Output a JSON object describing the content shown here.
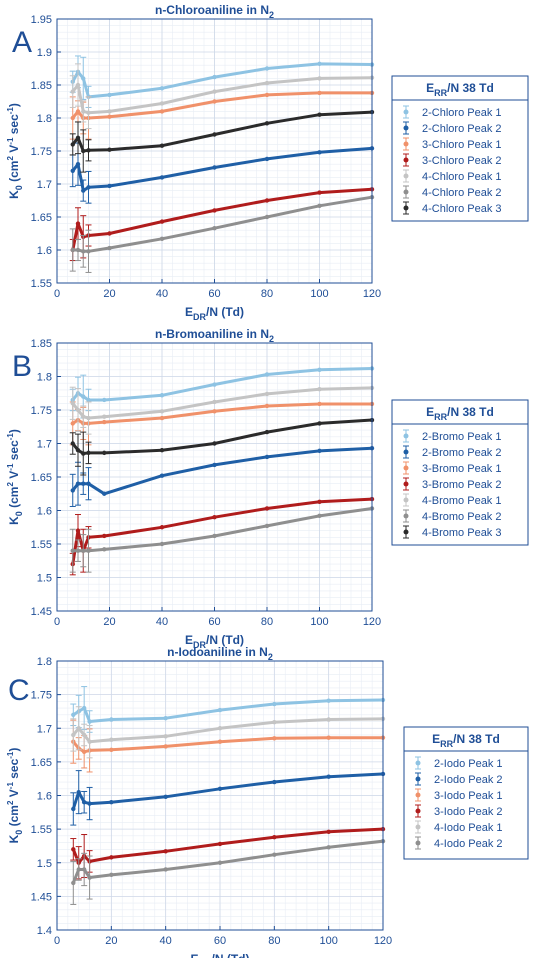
{
  "chart_data": [
    {
      "panel_label": "A",
      "type": "line",
      "title": "n-Chloroaniline in N",
      "title_sub": "2",
      "xlabel": "E",
      "xlabel_sub": "DR",
      "xlabel_tail": "/N (Td)",
      "ylabel": "K",
      "ylabel_sub": "0",
      "ylabel_tail": " (cm",
      "ylabel_units": "2",
      "ylabel_mid": " V",
      "ylabel_exp1": "-1",
      "ylabel_end": " sec",
      "ylabel_exp2": "-1",
      "ylabel_close": ")",
      "xlim": [
        0,
        120
      ],
      "ylim": [
        1.55,
        1.95
      ],
      "xticks": [
        "0",
        "20",
        "40",
        "60",
        "80",
        "100",
        "120"
      ],
      "yticks": [
        "1.55",
        "1.6",
        "1.65",
        "1.7",
        "1.75",
        "1.8",
        "1.85",
        "1.9",
        "1.95"
      ],
      "grid": true,
      "legend_title": "E",
      "legend_title_sub": "RR",
      "legend_title_tail": "/N 38 Td",
      "legend_position": "right",
      "series": [
        {
          "name": "2-Chloro Peak 1",
          "color": "#8ec3e3",
          "x": [
            6,
            8,
            10,
            12,
            20,
            40,
            60,
            80,
            100,
            120
          ],
          "y": [
            1.855,
            1.87,
            1.86,
            1.832,
            1.835,
            1.845,
            1.862,
            1.875,
            1.882,
            1.881
          ]
        },
        {
          "name": "2-Chloro Peak 2",
          "color": "#1f5fa6",
          "x": [
            6,
            8,
            10,
            12,
            20,
            40,
            60,
            80,
            100,
            120
          ],
          "y": [
            1.72,
            1.73,
            1.69,
            1.695,
            1.697,
            1.71,
            1.725,
            1.738,
            1.748,
            1.754
          ]
        },
        {
          "name": "3-Chloro Peak 1",
          "color": "#f0916a",
          "x": [
            6,
            8,
            10,
            12,
            20,
            40,
            60,
            80,
            100,
            120
          ],
          "y": [
            1.8,
            1.81,
            1.8,
            1.8,
            1.802,
            1.81,
            1.825,
            1.835,
            1.838,
            1.838
          ]
        },
        {
          "name": "3-Chloro Peak 2",
          "color": "#b01c1c",
          "x": [
            6,
            8,
            10,
            12,
            20,
            40,
            60,
            80,
            100,
            120
          ],
          "y": [
            1.6,
            1.64,
            1.62,
            1.622,
            1.625,
            1.643,
            1.66,
            1.675,
            1.687,
            1.692
          ]
        },
        {
          "name": "4-Chloro Peak 1",
          "color": "#c4c4c4",
          "x": [
            6,
            8,
            10,
            12,
            20,
            40,
            60,
            80,
            100,
            120
          ],
          "y": [
            1.84,
            1.85,
            1.81,
            1.808,
            1.81,
            1.822,
            1.84,
            1.853,
            1.86,
            1.861
          ]
        },
        {
          "name": "4-Chloro Peak 2",
          "color": "#8f8f8f",
          "x": [
            6,
            8,
            10,
            12,
            20,
            40,
            60,
            80,
            100,
            120
          ],
          "y": [
            1.6,
            1.6,
            1.598,
            1.598,
            1.603,
            1.617,
            1.633,
            1.65,
            1.667,
            1.68
          ]
        },
        {
          "name": "4-Chloro Peak 3",
          "color": "#2b2b2b",
          "x": [
            6,
            8,
            10,
            12,
            20,
            40,
            60,
            80,
            100,
            120
          ],
          "y": [
            1.76,
            1.77,
            1.75,
            1.751,
            1.752,
            1.758,
            1.775,
            1.792,
            1.805,
            1.809
          ]
        }
      ]
    },
    {
      "panel_label": "B",
      "type": "line",
      "title": "n-Bromoaniline in N",
      "title_sub": "2",
      "xlabel": "E",
      "xlabel_sub": "DR",
      "xlabel_tail": "/N (Td)",
      "ylabel": "K",
      "ylabel_sub": "0",
      "ylabel_tail": " (cm",
      "ylabel_units": "2",
      "ylabel_mid": " V",
      "ylabel_exp1": "-1",
      "ylabel_end": " sec",
      "ylabel_exp2": "-1",
      "ylabel_close": ")",
      "xlim": [
        0,
        120
      ],
      "ylim": [
        1.45,
        1.85
      ],
      "xticks": [
        "0",
        "20",
        "40",
        "60",
        "80",
        "100",
        "120"
      ],
      "yticks": [
        "1.45",
        "1.5",
        "1.55",
        "1.6",
        "1.65",
        "1.7",
        "1.75",
        "1.8",
        "1.85"
      ],
      "grid": true,
      "legend_title": "E",
      "legend_title_sub": "RR",
      "legend_title_tail": "/N 38 Td",
      "legend_position": "right",
      "series": [
        {
          "name": "2-Bromo Peak 1",
          "color": "#8ec3e3",
          "x": [
            6,
            8,
            10,
            12,
            18,
            40,
            60,
            80,
            100,
            120
          ],
          "y": [
            1.765,
            1.775,
            1.77,
            1.765,
            1.765,
            1.772,
            1.788,
            1.803,
            1.81,
            1.812
          ]
        },
        {
          "name": "2-Bromo Peak 2",
          "color": "#1f5fa6",
          "x": [
            6,
            8,
            10,
            12,
            18,
            40,
            60,
            80,
            100,
            120
          ],
          "y": [
            1.63,
            1.64,
            1.64,
            1.64,
            1.625,
            1.652,
            1.668,
            1.68,
            1.689,
            1.693
          ]
        },
        {
          "name": "3-Bromo Peak 1",
          "color": "#f0916a",
          "x": [
            6,
            8,
            10,
            12,
            18,
            40,
            60,
            80,
            100,
            120
          ],
          "y": [
            1.73,
            1.735,
            1.73,
            1.73,
            1.732,
            1.738,
            1.748,
            1.756,
            1.759,
            1.759
          ]
        },
        {
          "name": "3-Bromo Peak 2",
          "color": "#b01c1c",
          "x": [
            6,
            8,
            10,
            12,
            18,
            40,
            60,
            80,
            100,
            120
          ],
          "y": [
            1.52,
            1.57,
            1.54,
            1.56,
            1.562,
            1.575,
            1.59,
            1.603,
            1.613,
            1.617
          ]
        },
        {
          "name": "4-Bromo Peak 1",
          "color": "#c4c4c4",
          "x": [
            6,
            8,
            10,
            12,
            18,
            40,
            60,
            80,
            100,
            120
          ],
          "y": [
            1.76,
            1.75,
            1.74,
            1.738,
            1.74,
            1.748,
            1.762,
            1.774,
            1.781,
            1.783
          ]
        },
        {
          "name": "4-Bromo Peak 2",
          "color": "#8f8f8f",
          "x": [
            6,
            8,
            10,
            12,
            18,
            40,
            60,
            80,
            100,
            120
          ],
          "y": [
            1.54,
            1.54,
            1.54,
            1.54,
            1.542,
            1.55,
            1.562,
            1.577,
            1.592,
            1.603
          ]
        },
        {
          "name": "4-Bromo Peak 3",
          "color": "#2b2b2b",
          "x": [
            6,
            8,
            10,
            12,
            18,
            40,
            60,
            80,
            100,
            120
          ],
          "y": [
            1.7,
            1.69,
            1.685,
            1.686,
            1.686,
            1.69,
            1.7,
            1.717,
            1.73,
            1.735
          ]
        }
      ]
    },
    {
      "panel_label": "C",
      "type": "line",
      "title": "n-Iodoaniline in N",
      "title_sub": "2",
      "xlabel": "E",
      "xlabel_sub": "DR",
      "xlabel_tail": "/N (Td)",
      "ylabel": "K",
      "ylabel_sub": "0",
      "ylabel_tail": " (cm",
      "ylabel_units": "2",
      "ylabel_mid": " V",
      "ylabel_exp1": "-1",
      "ylabel_end": " sec",
      "ylabel_exp2": "-1",
      "ylabel_close": ")",
      "xlim": [
        0,
        120
      ],
      "ylim": [
        1.4,
        1.8
      ],
      "xticks": [
        "0",
        "20",
        "40",
        "60",
        "80",
        "100",
        "120"
      ],
      "yticks": [
        "1.4",
        "1.45",
        "1.5",
        "1.55",
        "1.6",
        "1.65",
        "1.7",
        "1.75",
        "1.8"
      ],
      "grid": true,
      "legend_title": "E",
      "legend_title_sub": "RR",
      "legend_title_tail": "/N 38 Td",
      "legend_position": "right",
      "series": [
        {
          "name": "2-Iodo Peak 1",
          "color": "#8ec3e3",
          "x": [
            6,
            8,
            10,
            12,
            20,
            40,
            60,
            80,
            100,
            120
          ],
          "y": [
            1.72,
            1.725,
            1.73,
            1.71,
            1.713,
            1.715,
            1.727,
            1.736,
            1.741,
            1.742
          ]
        },
        {
          "name": "2-Iodo Peak 2",
          "color": "#1f5fa6",
          "x": [
            6,
            8,
            10,
            12,
            20,
            40,
            60,
            80,
            100,
            120
          ],
          "y": [
            1.58,
            1.605,
            1.59,
            1.588,
            1.59,
            1.598,
            1.61,
            1.62,
            1.628,
            1.632
          ]
        },
        {
          "name": "3-Iodo Peak 1",
          "color": "#f0916a",
          "x": [
            6,
            8,
            10,
            12,
            20,
            40,
            60,
            80,
            100,
            120
          ],
          "y": [
            1.68,
            1.67,
            1.665,
            1.667,
            1.668,
            1.673,
            1.68,
            1.685,
            1.686,
            1.686
          ]
        },
        {
          "name": "3-Iodo Peak 2",
          "color": "#b01c1c",
          "x": [
            6,
            8,
            10,
            12,
            20,
            40,
            60,
            80,
            100,
            120
          ],
          "y": [
            1.52,
            1.5,
            1.51,
            1.502,
            1.508,
            1.517,
            1.528,
            1.538,
            1.546,
            1.55
          ]
        },
        {
          "name": "4-Iodo Peak 1",
          "color": "#c4c4c4",
          "x": [
            6,
            8,
            10,
            12,
            20,
            40,
            60,
            80,
            100,
            120
          ],
          "y": [
            1.69,
            1.7,
            1.69,
            1.68,
            1.683,
            1.688,
            1.7,
            1.709,
            1.713,
            1.714
          ]
        },
        {
          "name": "4-Iodo Peak 2",
          "color": "#8f8f8f",
          "x": [
            6,
            8,
            10,
            12,
            20,
            40,
            60,
            80,
            100,
            120
          ],
          "y": [
            1.47,
            1.49,
            1.49,
            1.478,
            1.482,
            1.49,
            1.5,
            1.512,
            1.523,
            1.532
          ]
        }
      ]
    }
  ]
}
